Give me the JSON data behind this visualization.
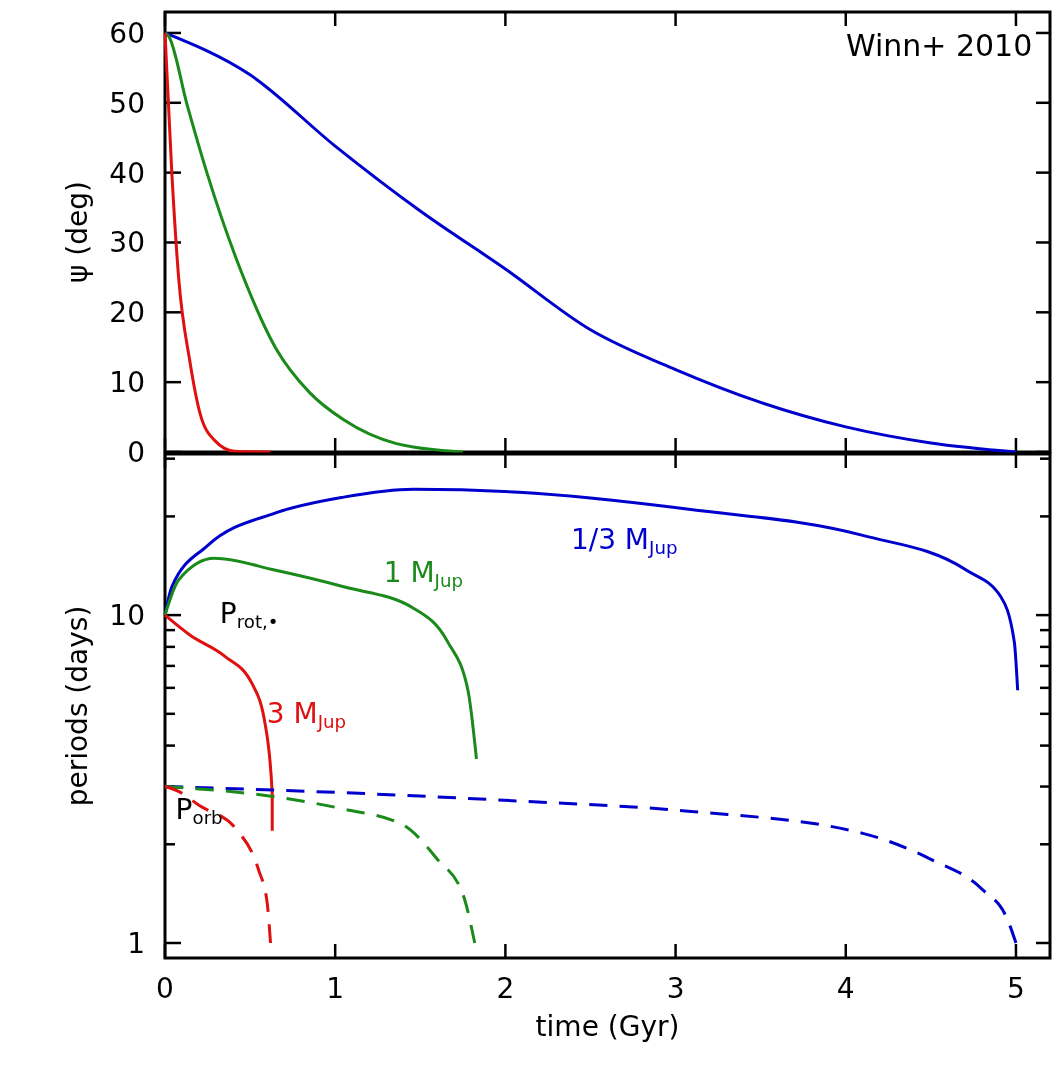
{
  "chart_data": [
    {
      "type": "line",
      "ylabel": "ψ (deg)",
      "xlim": [
        0,
        5.2
      ],
      "xticks": [
        0,
        1,
        2,
        3,
        4,
        5
      ],
      "ylim": [
        0,
        63
      ],
      "yticks": [
        0,
        10,
        20,
        30,
        40,
        50,
        60
      ],
      "tick_labels": "y",
      "grid": false,
      "annotations": [
        "Winn+ 2010"
      ],
      "series": [
        {
          "color": "#0000cc",
          "line_style": "solid",
          "x": [
            0,
            0.5,
            1,
            1.5,
            2,
            2.5,
            3,
            3.5,
            4,
            4.5,
            5
          ],
          "values": [
            60,
            54,
            43.8,
            34.5,
            26.2,
            17.5,
            11.8,
            7.1,
            3.6,
            1.3,
            0
          ]
        },
        {
          "color": "#1a8a1a",
          "line_style": "solid",
          "x": [
            0,
            0.02,
            0.13,
            0.246,
            0.45,
            0.65,
            0.85,
            1.05,
            1.36,
            1.75
          ],
          "values": [
            60,
            59.6,
            49.7,
            40,
            25.7,
            14.9,
            8.5,
            4.6,
            1.2,
            0
          ]
        },
        {
          "color": "#e01010",
          "line_style": "solid",
          "x": [
            0,
            0.04,
            0.08,
            0.146,
            0.205,
            0.29,
            0.41,
            0.62
          ],
          "values": [
            60,
            40,
            25,
            13,
            5.6,
            1.7,
            0.1,
            0
          ]
        }
      ]
    },
    {
      "type": "line",
      "xlabel": "time (Gyr)",
      "ylabel": "periods (days)",
      "log": "y",
      "xlim": [
        0,
        5.2
      ],
      "xticks": [
        0,
        1,
        2,
        3,
        4,
        5
      ],
      "ylim": [
        0.9,
        31
      ],
      "yticks": [
        1,
        {
          "value": 2,
          "label": null
        },
        {
          "value": 3,
          "label": null
        },
        {
          "value": 4,
          "label": null
        },
        {
          "value": 5,
          "label": null
        },
        {
          "value": 6,
          "label": null
        },
        {
          "value": 7,
          "label": null
        },
        {
          "value": 8,
          "label": null
        },
        {
          "value": 9,
          "label": null
        },
        10,
        {
          "value": 20,
          "label": null
        },
        {
          "value": 30,
          "label": null
        }
      ],
      "grid": false,
      "annotations": [
        "P$_{rot,•}$",
        "P$_{orb}$"
      ],
      "series": [
        {
          "name": "1/3 M$_{Jup}$",
          "color": "#0000cc",
          "line_style": "solid",
          "x": [
            0,
            0.04,
            0.25,
            0.65,
            1.05,
            1.46,
            2.08,
            3.09,
            4.1,
            4.71,
            4.91,
            4.99,
            5.01
          ],
          "values": [
            10,
            12.2,
            16.3,
            20.5,
            22.9,
            24.2,
            23.7,
            21.0,
            17.5,
            13.7,
            11.4,
            8.3,
            5.9
          ]
        },
        {
          "name": "1 M$_{Jup}$",
          "color": "#1a8a1a",
          "line_style": "solid",
          "x": [
            0,
            0.08,
            0.29,
            0.65,
            1.05,
            1.46,
            1.66,
            1.78,
            1.83
          ],
          "values": [
            10,
            12.8,
            14.9,
            13.7,
            12.2,
            10.5,
            8.3,
            5.9,
            3.64
          ]
        },
        {
          "name": "3 M$_{Jup}$",
          "color": "#e01010",
          "line_style": "solid",
          "x": [
            0,
            0.146,
            0.35,
            0.51,
            0.59,
            0.63,
            0.63
          ],
          "values": [
            10,
            8.7,
            7.5,
            6.2,
            4.6,
            2.85,
            2.2
          ]
        },
        {
          "color": "#0000cc",
          "line_style": "dashed",
          "x": [
            0,
            1,
            2.08,
            3.09,
            4.1,
            4.5,
            4.8,
            4.95,
            5
          ],
          "values": [
            3,
            2.88,
            2.71,
            2.52,
            2.16,
            1.8,
            1.46,
            1.18,
            1
          ]
        },
        {
          "color": "#1a8a1a",
          "line_style": "dashed",
          "x": [
            0,
            0.65,
            1.05,
            1.4,
            1.6,
            1.75,
            1.82
          ],
          "values": [
            3,
            2.79,
            2.56,
            2.29,
            1.8,
            1.41,
            1
          ]
        },
        {
          "color": "#e01010",
          "line_style": "dashed",
          "x": [
            0,
            0.08,
            0.2,
            0.42,
            0.55,
            0.6,
            0.62
          ],
          "values": [
            3,
            2.9,
            2.63,
            2.22,
            1.67,
            1.33,
            1
          ]
        }
      ]
    }
  ]
}
